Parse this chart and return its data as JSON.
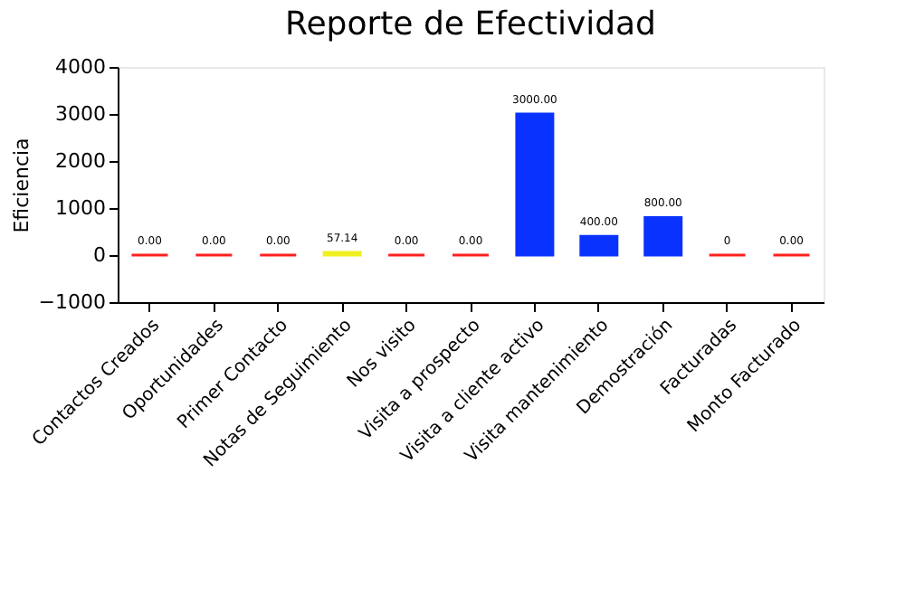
{
  "chart_data": {
    "type": "bar",
    "title": "Reporte de Efectividad",
    "ylabel": "Eficiencia",
    "categories": [
      "Contactos Creados",
      "Oportunidades",
      "Primer Contacto",
      "Notas de Seguimiento",
      "Nos visito",
      "Visita a prospecto",
      "Visita a cliente activo",
      "Visita mantenimiento",
      "Demostración",
      "Facturadas",
      "Monto Facturado"
    ],
    "values": [
      0,
      0,
      0,
      57.14,
      0,
      0,
      3000,
      400,
      800,
      0,
      0
    ],
    "colors": [
      "#ff2020",
      "#ff2020",
      "#ff2020",
      "#f0f020",
      "#ff2020",
      "#ff2020",
      "#0a32ff",
      "#0a32ff",
      "#0a32ff",
      "#ff2020",
      "#ff2020"
    ],
    "value_labels": [
      "0.00",
      "0.00",
      "0.00",
      "57.14",
      "0.00",
      "0.00",
      "3000.00",
      "400.00",
      "800.00",
      "0",
      "0.00"
    ],
    "ylim": [
      -1000,
      4000
    ],
    "yticks": [
      -1000,
      0,
      1000,
      2000,
      3000,
      4000
    ],
    "grid": false
  }
}
